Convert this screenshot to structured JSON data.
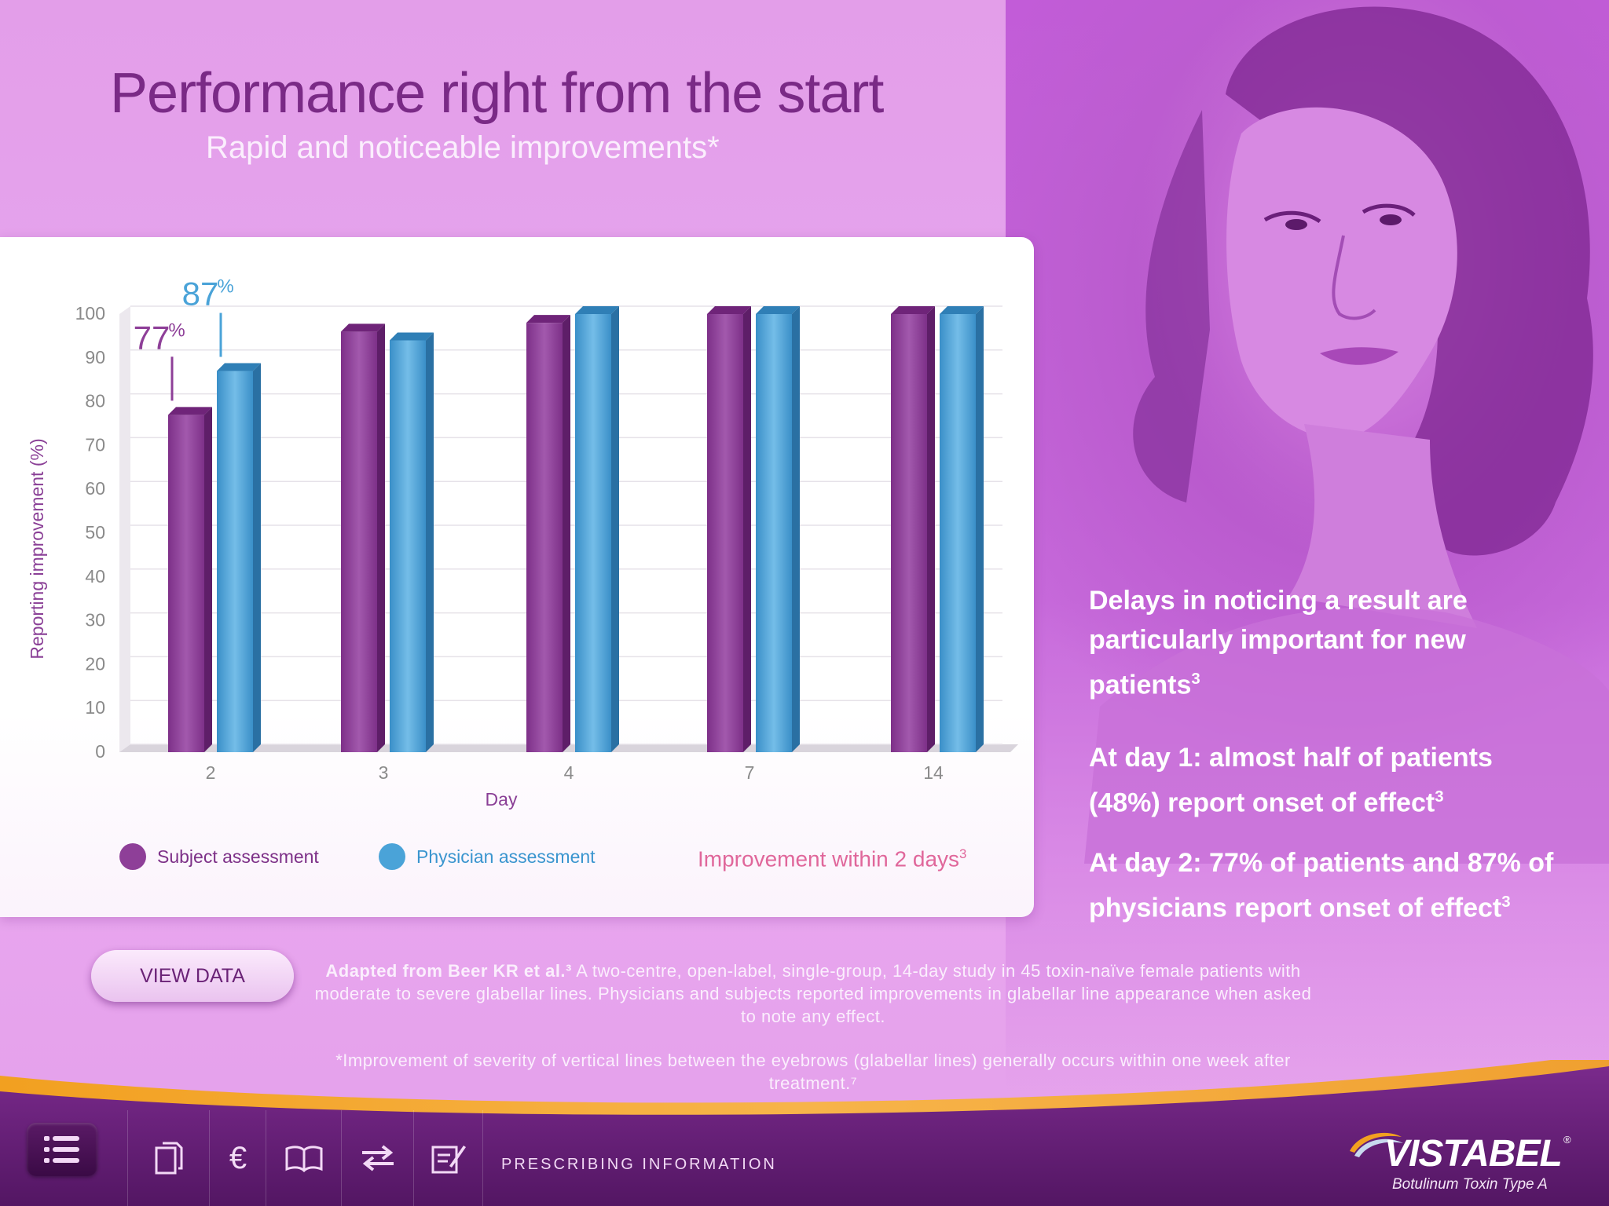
{
  "header": {
    "title": "Performance right from the start",
    "subtitle": "Rapid and noticeable improvements*"
  },
  "chart_data": {
    "type": "bar",
    "categories": [
      "2",
      "3",
      "4",
      "7",
      "14"
    ],
    "series": [
      {
        "name": "Subject assessment",
        "values": [
          77,
          96,
          98,
          100,
          100
        ],
        "color": "#8e3f98"
      },
      {
        "name": "Physician assessment",
        "values": [
          87,
          94,
          100,
          100,
          100
        ],
        "color": "#4aa3d8"
      }
    ],
    "ylim": [
      0,
      100
    ],
    "yticks": [
      "0",
      "10",
      "20",
      "30",
      "40",
      "50",
      "60",
      "70",
      "80",
      "90",
      "100"
    ],
    "xlabel": "Day",
    "ylabel": "Reporting improvement (%)",
    "annotations": [
      {
        "label": "77",
        "unit": "%",
        "series": 0,
        "category": "2"
      },
      {
        "label": "87",
        "unit": "%",
        "series": 1,
        "category": "2"
      }
    ],
    "legend_position": "bottom-left",
    "grid": true
  },
  "chart_note": {
    "text": "Improvement within 2 days",
    "sup": "3"
  },
  "side": {
    "p1": "Delays in noticing a result are particularly important for new patients",
    "p1_sup": "3",
    "p2": "At day 1: almost half of patients (48%) report onset of effect",
    "p2_sup": "3",
    "p3": "At day 2: 77% of patients and 87% of physicians report onset of effect",
    "p3_sup": "3"
  },
  "view_data_label": "VIEW DATA",
  "description": {
    "bold": "Adapted from Beer KR et al.³",
    "text": " A two-centre, open-label, single-group, 14-day  study in 45 toxin-naïve female patients with moderate to severe glabellar lines. Physicians and subjects reported improvements in glabellar line appearance  when asked to note any effect."
  },
  "footnote": "*Improvement of severity of vertical lines between the eyebrows (glabellar lines) generally occurs within one week after treatment.⁷",
  "toolbar": {
    "prescribing_label": "PRESCRIBING INFORMATION",
    "icons": [
      "menu-list-icon",
      "documents-icon",
      "euro-icon",
      "book-icon",
      "swap-arrows-icon",
      "notes-edit-icon"
    ]
  },
  "brand": {
    "name": "VISTABEL",
    "reg": "®",
    "subtitle": "Botulinum Toxin Type A"
  },
  "colors": {
    "title": "#7a2a86",
    "subject": "#8e3f98",
    "physician": "#4aa3d8",
    "note": "#e0679b",
    "bar_bg": "#5d1a6c"
  }
}
